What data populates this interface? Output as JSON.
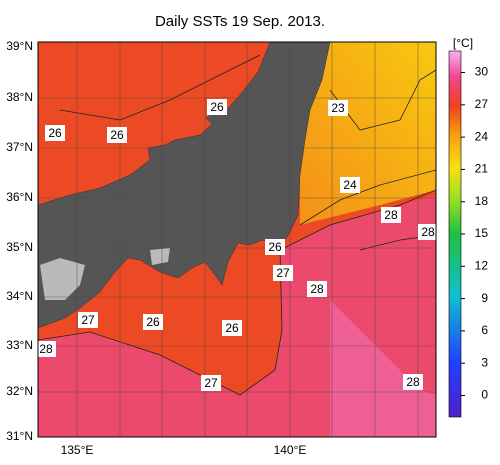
{
  "title": "Daily SSTs 19 Sep. 2013.",
  "map": {
    "latitude_labels": [
      "39°N",
      "38°N",
      "37°N",
      "36°N",
      "35°N",
      "34°N",
      "33°N",
      "32°N",
      "31°N"
    ],
    "longitude_labels": [
      "135°E",
      "140°E"
    ],
    "contour_labels": [
      26,
      26,
      26,
      23,
      24,
      28,
      28,
      26,
      27,
      28,
      27,
      26,
      26,
      28,
      27,
      28
    ]
  },
  "colorbar": {
    "unit": "[°C]",
    "range": [
      -2,
      32
    ],
    "ticks": [
      30,
      27,
      24,
      21,
      18,
      15,
      12,
      9,
      6,
      3,
      0
    ]
  }
}
